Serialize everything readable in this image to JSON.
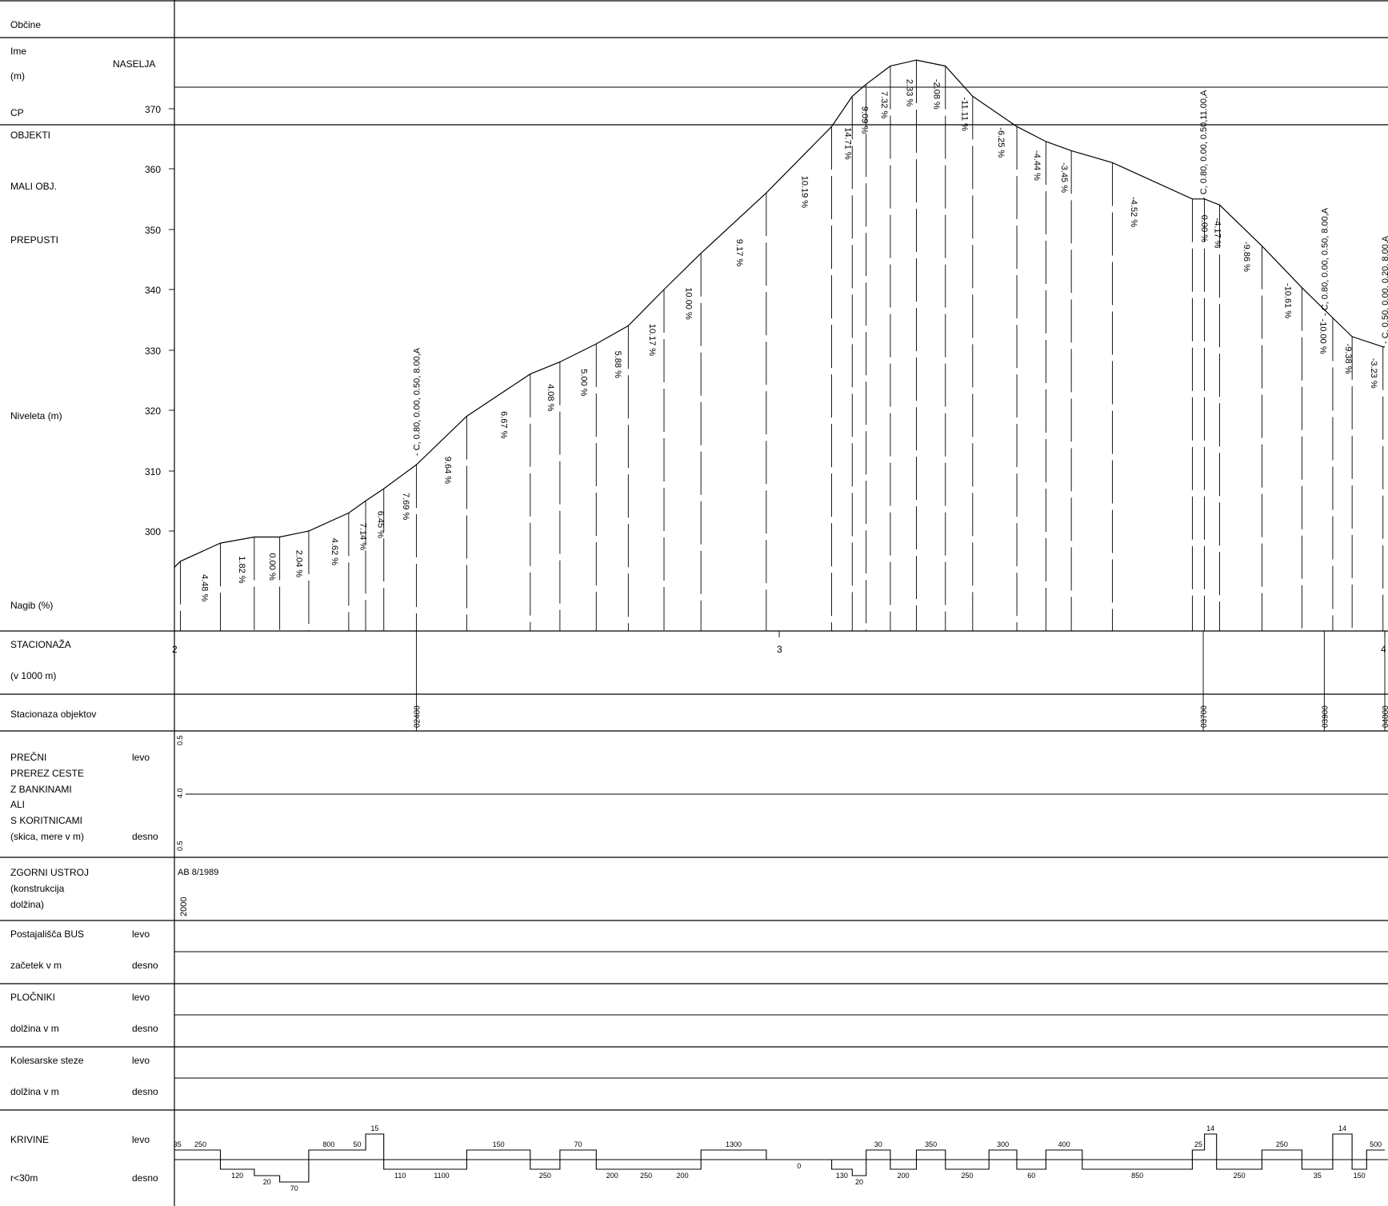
{
  "rows": {
    "obcine": "Občine",
    "ime": "Ime",
    "ime_unit": "(m)",
    "naselja": "NASELJA",
    "cp": "CP",
    "objekti": "OBJEKTI",
    "mali_obj": "MALI OBJ.",
    "prepusti": "PREPUSTI",
    "niveleta": "Niveleta (m)",
    "nagib": "Nagib (%)",
    "stacionaza": "STACIONAŽA",
    "stacionaza_unit": "(v  1000 m)",
    "stacionaza_objektov": "Stacionaza objektov",
    "precni": [
      "PREČNI",
      "PREREZ CESTE",
      "Z BANKINAMI",
      "ALI",
      "S KORITNICAMI",
      "(skica, mere v m)"
    ],
    "zgornji": [
      "ZGORNI USTROJ",
      "(konstrukcija",
      "dolžina)"
    ],
    "bus": "Postajališča BUS",
    "bus_sub": " začetek v m",
    "plocniki": "PLOČNIKI",
    "plocniki_sub": " dolžina v m",
    "kolesarske": "Kolesarske steze",
    "kolesarske_sub": " dolžina v m",
    "krivine": "KRIVINE",
    "krivine_sub": " r<30m",
    "levo": "levo",
    "desno": "desno"
  },
  "elevation_ticks": [
    "370",
    "360",
    "350",
    "340",
    "330",
    "320",
    "310",
    "300"
  ],
  "station_ticks": [
    "2",
    "3",
    "4"
  ],
  "profile": {
    "km": [
      2.0,
      2.01,
      2.076,
      2.132,
      2.174,
      2.222,
      2.288,
      2.316,
      2.346,
      2.4,
      2.483,
      2.588,
      2.637,
      2.697,
      2.75,
      2.809,
      2.87,
      2.978,
      3.086,
      3.12,
      3.143,
      3.183,
      3.226,
      3.274,
      3.319,
      3.392,
      3.44,
      3.482,
      3.55,
      3.682,
      3.702,
      3.727,
      3.797,
      3.863,
      3.914,
      3.946,
      3.997,
      4.0
    ],
    "elev": [
      294,
      295,
      298,
      299,
      299,
      300,
      303,
      305,
      307,
      311,
      319,
      326,
      328,
      331,
      334,
      340,
      346,
      356,
      367,
      372,
      374,
      377,
      378,
      377,
      372,
      367,
      364.5,
      363,
      361,
      355,
      355,
      354,
      347.2,
      340.3,
      335.3,
      332.2,
      330.5,
      330.5
    ]
  },
  "grades": [
    {
      "km": 2.04,
      "elev": 295.5,
      "text": "4.48 %"
    },
    {
      "km": 2.102,
      "elev": 298.5,
      "text": "1.82 %"
    },
    {
      "km": 2.152,
      "elev": 299.0,
      "text": "0.00 %"
    },
    {
      "km": 2.196,
      "elev": 299.5,
      "text": "2.04 %"
    },
    {
      "km": 2.255,
      "elev": 301.5,
      "text": "4.62 %"
    },
    {
      "km": 2.302,
      "elev": 304.0,
      "text": "7.14 %"
    },
    {
      "km": 2.331,
      "elev": 306.0,
      "text": "6.45 %"
    },
    {
      "km": 2.373,
      "elev": 309.0,
      "text": "7.69 %"
    },
    {
      "km": 2.442,
      "elev": 315.0,
      "text": "9.64 %"
    },
    {
      "km": 2.535,
      "elev": 322.5,
      "text": "6.67 %"
    },
    {
      "km": 2.612,
      "elev": 327.0,
      "text": "4.08 %"
    },
    {
      "km": 2.667,
      "elev": 329.5,
      "text": "5.00 %"
    },
    {
      "km": 2.723,
      "elev": 332.5,
      "text": "5.88 %"
    },
    {
      "km": 2.78,
      "elev": 337.0,
      "text": "10.17 %"
    },
    {
      "km": 2.84,
      "elev": 343.0,
      "text": "10.00 %"
    },
    {
      "km": 2.924,
      "elev": 351.0,
      "text": "9.17 %"
    },
    {
      "km": 3.032,
      "elev": 361.5,
      "text": "10.19 %"
    },
    {
      "km": 3.103,
      "elev": 369.5,
      "text": "14.71 %"
    },
    {
      "km": 3.131,
      "elev": 373.0,
      "text": "9.09 %"
    },
    {
      "km": 3.163,
      "elev": 375.5,
      "text": "7.32 %"
    },
    {
      "km": 3.205,
      "elev": 377.5,
      "text": "2.33 %"
    },
    {
      "km": 3.25,
      "elev": 377.5,
      "text": "-2.08 %"
    },
    {
      "km": 3.296,
      "elev": 374.5,
      "text": "-11.11 %"
    },
    {
      "km": 3.356,
      "elev": 369.5,
      "text": "-6.25 %"
    },
    {
      "km": 3.416,
      "elev": 365.7,
      "text": "-4.44 %"
    },
    {
      "km": 3.461,
      "elev": 363.7,
      "text": "-3.45 %"
    },
    {
      "km": 3.576,
      "elev": 358.0,
      "text": "-4.52 %"
    },
    {
      "km": 3.692,
      "elev": 355.0,
      "text": "0.00 %"
    },
    {
      "km": 3.714,
      "elev": 354.5,
      "text": "-4.17 %"
    },
    {
      "km": 3.762,
      "elev": 350.6,
      "text": "-9.86 %"
    },
    {
      "km": 3.83,
      "elev": 343.7,
      "text": "-10.61 %"
    },
    {
      "km": 3.888,
      "elev": 337.8,
      "text": "-10.00 %"
    },
    {
      "km": 3.93,
      "elev": 333.7,
      "text": "-9.38 %"
    },
    {
      "km": 3.972,
      "elev": 331.3,
      "text": "-3.23 %"
    }
  ],
  "objects": [
    {
      "km": 2.4,
      "label": "- C, 0.80, 0.00, 0.50, 8.00,A",
      "station": "02400"
    },
    {
      "km": 3.7,
      "label": "- C, 0.80, 0.00, 0.50,11.00,A",
      "station": "03700"
    },
    {
      "km": 3.9,
      "label": "- C, 0.80, 0.00, 0.50, 8.00,A",
      "station": "03900"
    },
    {
      "km": 4.0,
      "label": "- C, 0.50, 0.00, 0.20, 8.00,A",
      "station": "04000"
    }
  ],
  "cross_section": {
    "left": "0.5",
    "mid": "4.0",
    "right": "0.5"
  },
  "zgornji_ustroj": {
    "type": "AB 8/1989",
    "length": "2000"
  },
  "curves": [
    {
      "km0": 2.0,
      "km1": 2.01,
      "dir": "levo",
      "r": "35"
    },
    {
      "km0": 2.01,
      "km1": 2.076,
      "dir": "levo",
      "r": "250"
    },
    {
      "km0": 2.076,
      "km1": 2.132,
      "dir": "desno",
      "r": "120"
    },
    {
      "km0": 2.132,
      "km1": 2.174,
      "dir": "desno",
      "r": "20"
    },
    {
      "km0": 2.174,
      "km1": 2.222,
      "dir": "desno",
      "r": "70"
    },
    {
      "km0": 2.222,
      "km1": 2.288,
      "dir": "levo",
      "r": "800"
    },
    {
      "km0": 2.288,
      "km1": 2.316,
      "dir": "levo",
      "r": "50"
    },
    {
      "km0": 2.316,
      "km1": 2.346,
      "dir": "levo",
      "r": "15"
    },
    {
      "km0": 2.346,
      "km1": 2.4,
      "dir": "desno",
      "r": "110"
    },
    {
      "km0": 2.4,
      "km1": 2.483,
      "dir": "desno",
      "r": "1100"
    },
    {
      "km0": 2.483,
      "km1": 2.588,
      "dir": "levo",
      "r": "150"
    },
    {
      "km0": 2.588,
      "km1": 2.637,
      "dir": "desno",
      "r": "250"
    },
    {
      "km0": 2.637,
      "km1": 2.697,
      "dir": "levo",
      "r": "70"
    },
    {
      "km0": 2.697,
      "km1": 2.75,
      "dir": "desno",
      "r": "200"
    },
    {
      "km0": 2.75,
      "km1": 2.809,
      "dir": "desno",
      "r": "250"
    },
    {
      "km0": 2.809,
      "km1": 2.87,
      "dir": "desno",
      "r": "200"
    },
    {
      "km0": 2.87,
      "km1": 2.978,
      "dir": "levo",
      "r": "1300"
    },
    {
      "km0": 2.978,
      "km1": 3.086,
      "dir": "desno",
      "r": "0"
    },
    {
      "km0": 3.086,
      "km1": 3.12,
      "dir": "desno",
      "r": "130"
    },
    {
      "km0": 3.12,
      "km1": 3.143,
      "dir": "desno",
      "r": "20"
    },
    {
      "km0": 3.143,
      "km1": 3.183,
      "dir": "levo",
      "r": "30"
    },
    {
      "km0": 3.183,
      "km1": 3.226,
      "dir": "desno",
      "r": "200"
    },
    {
      "km0": 3.226,
      "km1": 3.274,
      "dir": "levo",
      "r": "350"
    },
    {
      "km0": 3.274,
      "km1": 3.346,
      "dir": "desno",
      "r": "250"
    },
    {
      "km0": 3.346,
      "km1": 3.392,
      "dir": "levo",
      "r": "300"
    },
    {
      "km0": 3.392,
      "km1": 3.44,
      "dir": "desno",
      "r": "60"
    },
    {
      "km0": 3.44,
      "km1": 3.5,
      "dir": "levo",
      "r": "400"
    },
    {
      "km0": 3.5,
      "km1": 3.682,
      "dir": "desno",
      "r": "850"
    },
    {
      "km0": 3.682,
      "km1": 3.702,
      "dir": "levo",
      "r": "25"
    },
    {
      "km0": 3.702,
      "km1": 3.722,
      "dir": "levo",
      "r": "14"
    },
    {
      "km0": 3.722,
      "km1": 3.797,
      "dir": "desno",
      "r": "250"
    },
    {
      "km0": 3.797,
      "km1": 3.863,
      "dir": "levo",
      "r": "250"
    },
    {
      "km0": 3.863,
      "km1": 3.914,
      "dir": "desno",
      "r": "35"
    },
    {
      "km0": 3.914,
      "km1": 3.946,
      "dir": "levo",
      "r": "14"
    },
    {
      "km0": 3.946,
      "km1": 3.97,
      "dir": "desno",
      "r": "150"
    },
    {
      "km0": 3.97,
      "km1": 4.0,
      "dir": "levo",
      "r": "500"
    }
  ]
}
